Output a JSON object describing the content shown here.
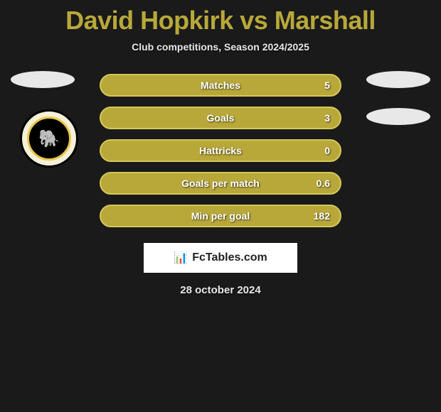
{
  "title": {
    "player1": "David Hopkirk",
    "vs": "vs",
    "player2": "Marshall"
  },
  "subtitle": "Club competitions, Season 2024/2025",
  "colors": {
    "bar_fill": "#b8a83a",
    "bar_border": "#d4c858",
    "background": "#1a1a1a",
    "title_color": "#b8a83a",
    "text_color": "#e8e8e8",
    "text_white": "#ffffff"
  },
  "stats": [
    {
      "label": "Matches",
      "value": "5"
    },
    {
      "label": "Goals",
      "value": "3"
    },
    {
      "label": "Hattricks",
      "value": "0"
    },
    {
      "label": "Goals per match",
      "value": "0.6"
    },
    {
      "label": "Min per goal",
      "value": "182"
    }
  ],
  "club_badge": {
    "name": "dumbarton-fc-badge",
    "emoji": "🐘"
  },
  "watermark": {
    "icon": "📊",
    "text": "FcTables.com"
  },
  "date": "28 october 2024"
}
